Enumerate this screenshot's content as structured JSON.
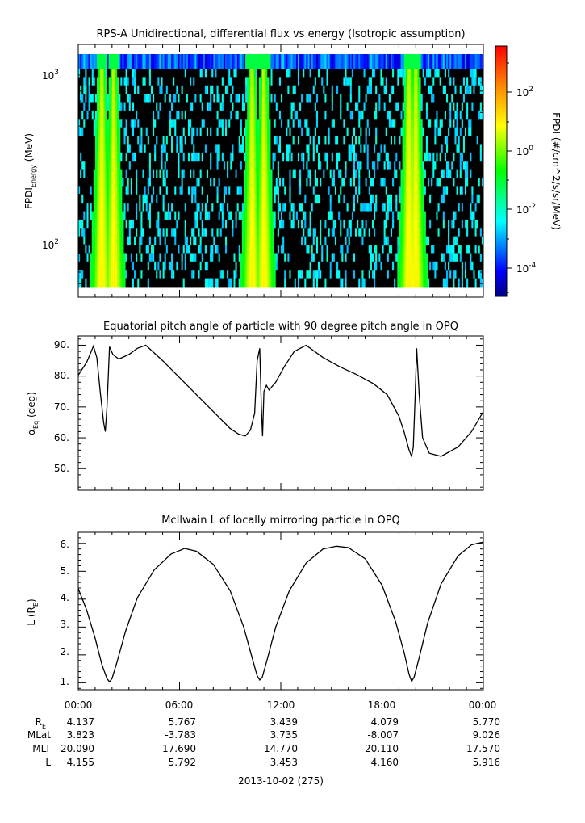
{
  "panels": {
    "spectrogram": {
      "title": "RPS-A Unidirectional, differential flux vs energy (Isotropic assumption)",
      "ylabel_main": "FPDI",
      "ylabel_sub": "Energy",
      "ylabel_unit": " (MeV)",
      "y_tick_labels": [
        {
          "base": "10",
          "exp": "3"
        },
        {
          "base": "10",
          "exp": "2"
        }
      ],
      "colorbar_label": "FPDI (#/cm^2/s/sr/MeV)",
      "colorbar_ticks": [
        {
          "base": "10",
          "exp": "2"
        },
        {
          "base": "10",
          "exp": "0"
        },
        {
          "base": "10",
          "exp": "-2"
        },
        {
          "base": "10",
          "exp": "-4"
        }
      ]
    },
    "pitch": {
      "title": "Equatorial pitch angle of particle with 90 degree pitch angle in OPQ",
      "ylabel_alpha": "α",
      "ylabel_sub": "Eq",
      "ylabel_unit": " (deg)",
      "y_tick_labels": [
        "90.",
        "80.",
        "70.",
        "60.",
        "50."
      ]
    },
    "lshell": {
      "title": "McIlwain L of locally mirroring particle in OPQ",
      "ylabel_main": "L (R",
      "ylabel_sub": "E",
      "ylabel_close": ")",
      "y_tick_labels": [
        "6.",
        "5.",
        "4.",
        "3.",
        "2.",
        "1."
      ]
    }
  },
  "x_axis": {
    "time_labels": [
      "00:00",
      "06:00",
      "12:00",
      "18:00",
      "00:00"
    ],
    "row_labels": [
      "R",
      "MLat",
      "MLT",
      "L"
    ],
    "re_sub": "E",
    "rows": {
      "re": [
        "4.137",
        "5.767",
        "3.439",
        "4.079",
        "5.770"
      ],
      "mlat": [
        "3.823",
        "-3.783",
        "3.735",
        "-8.007",
        "9.026"
      ],
      "mlt": [
        "20.090",
        "17.690",
        "14.770",
        "20.110",
        "17.570"
      ],
      "l": [
        "4.155",
        "5.792",
        "3.453",
        "4.160",
        "5.916"
      ]
    },
    "date_label": "2013-10-02 (275)"
  },
  "chart_data": [
    {
      "type": "heatmap",
      "title": "RPS-A Unidirectional, differential flux vs energy (Isotropic assumption)",
      "xlabel": "",
      "ylabel": "FPDI Energy (MeV)",
      "x_range_hours": [
        0,
        24
      ],
      "ylim": [
        50,
        1500
      ],
      "y_scale": "log",
      "colorbar": {
        "label": "FPDI (#/cm^2/s/sr/MeV)",
        "scale": "log",
        "range": [
          1e-05,
          3000
        ],
        "colormap": "rainbow (blue-cyan-green-yellow-red)"
      },
      "high_flux_bands_hours": [
        {
          "center": 1.9,
          "note": "two adjacent peaks around 1.4 and 2.1 h"
        },
        {
          "center": 10.7,
          "note": "two adjacent peaks around 10.3 and 11.0 h"
        },
        {
          "center": 19.8,
          "note": "two adjacent peaks around 19.6 and 20.0 h"
        }
      ]
    },
    {
      "type": "line",
      "title": "Equatorial pitch angle of particle with 90 degree pitch angle in OPQ",
      "xlabel": "",
      "ylabel": "α Eq (deg)",
      "xlim": [
        0,
        24
      ],
      "ylim": [
        43,
        93
      ],
      "series": [
        {
          "x": [
            0,
            0.5,
            0.9,
            1.1,
            1.3,
            1.5,
            1.6,
            1.7,
            1.85,
            2.05,
            2.4,
            3.0,
            3.5,
            4.0,
            5.0,
            6.0,
            7.0,
            8.0,
            9.0,
            9.5,
            9.9,
            10.2,
            10.45,
            10.6,
            10.75,
            10.85,
            10.92,
            11.0,
            11.15,
            11.3,
            11.7,
            12.2,
            12.8,
            13.5,
            14.5,
            15.5,
            16.5,
            17.5,
            18.3,
            19.0,
            19.3,
            19.6,
            19.75,
            19.85,
            19.95,
            20.05,
            20.2,
            20.4,
            20.8,
            21.5,
            22.5,
            23.3,
            24.0
          ],
          "y": [
            80.3,
            84.5,
            89.7,
            86.0,
            75.0,
            65.0,
            62.0,
            70.0,
            89.5,
            87.0,
            85.5,
            87.0,
            89.0,
            90.0,
            85.0,
            79.5,
            74.0,
            68.5,
            63.0,
            61.2,
            60.6,
            62.5,
            68.0,
            85.0,
            89.0,
            70.0,
            60.5,
            75.0,
            77.0,
            75.5,
            78.0,
            83.0,
            88.0,
            90.0,
            86.0,
            83.0,
            80.5,
            77.5,
            74.0,
            67.0,
            62.0,
            56.0,
            54.0,
            57.0,
            72.0,
            89.0,
            74.0,
            60.0,
            55.0,
            54.0,
            57.0,
            62.0,
            68.5
          ]
        }
      ]
    },
    {
      "type": "line",
      "title": "McIlwain L of locally mirroring particle in OPQ",
      "xlabel": "",
      "ylabel": "L (R E)",
      "xlim": [
        0,
        24
      ],
      "ylim": [
        0.75,
        6.4
      ],
      "series": [
        {
          "x": [
            0,
            0.5,
            1.0,
            1.4,
            1.7,
            1.85,
            2.0,
            2.3,
            2.8,
            3.5,
            4.5,
            5.5,
            6.3,
            7.0,
            8.0,
            9.0,
            9.8,
            10.3,
            10.6,
            10.75,
            10.9,
            11.2,
            11.7,
            12.5,
            13.5,
            14.5,
            15.3,
            16.0,
            17.0,
            18.0,
            18.8,
            19.3,
            19.6,
            19.75,
            19.9,
            20.2,
            20.7,
            21.5,
            22.5,
            23.3,
            24.0
          ],
          "y": [
            4.38,
            3.6,
            2.6,
            1.65,
            1.15,
            1.03,
            1.15,
            1.75,
            2.85,
            4.05,
            5.05,
            5.62,
            5.82,
            5.72,
            5.25,
            4.3,
            3.0,
            1.9,
            1.25,
            1.1,
            1.2,
            1.85,
            3.0,
            4.3,
            5.3,
            5.8,
            5.9,
            5.85,
            5.45,
            4.5,
            3.2,
            2.1,
            1.3,
            1.05,
            1.2,
            1.9,
            3.15,
            4.55,
            5.55,
            5.95,
            6.05
          ]
        }
      ]
    }
  ]
}
